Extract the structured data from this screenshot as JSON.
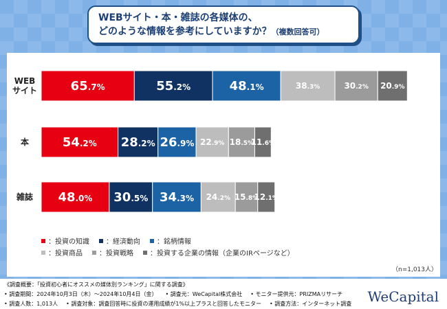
{
  "title": {
    "line1": "WEBサイト・本・雑誌の各媒体の、",
    "line2": "どのような情報を参考にしていますか？",
    "line2_note": "（複数回答可）"
  },
  "chart_data": {
    "type": "bar",
    "orientation": "horizontal",
    "categories": [
      "WEB\nサイト",
      "本",
      "雑誌"
    ],
    "category_lines": [
      [
        "WEB",
        "サイト"
      ],
      [
        "本"
      ],
      [
        "雑誌"
      ]
    ],
    "series": [
      {
        "name": "投資の知識",
        "color": "#e60012",
        "values": [
          65.7,
          54.2,
          48.0
        ]
      },
      {
        "name": "経済動向",
        "color": "#0f3262",
        "values": [
          55.2,
          28.2,
          30.5
        ]
      },
      {
        "name": "銘柄情報",
        "color": "#1c63a6",
        "values": [
          48.1,
          26.9,
          34.3
        ]
      },
      {
        "name": "投資商品",
        "color": "#bdbdbd",
        "values": [
          38.3,
          22.9,
          24.2
        ]
      },
      {
        "name": "投資戦略",
        "color": "#9b9b9b",
        "values": [
          30.2,
          18.5,
          15.8
        ]
      },
      {
        "name": "投資する企業の情報（企業のIRページなど）",
        "color": "#6f6f6f",
        "values": [
          20.9,
          11.6,
          12.1
        ]
      }
    ],
    "value_suffix": "%",
    "legend": "bottom"
  },
  "legend_prefix": "：",
  "sample_note": "（n=1,013人）",
  "footer": {
    "line1": "《調査概要：「投資初心者にオススメの媒体別ランキング」に関する調査》",
    "line2": [
      "• 調査期間：2024年10月3日（木）〜2024年10月4日（金）",
      "• 調査元：WeCapital株式会社",
      "• モニター提供元：PRIZMAリサーチ"
    ],
    "line3": [
      "• 調査人数：1,013人",
      "• 調査対象：調査回答時に投資の運用成績が1%以上プラスと回答したモニター",
      "• 調査方法：インターネット調査"
    ],
    "logo": "WeCapital"
  }
}
